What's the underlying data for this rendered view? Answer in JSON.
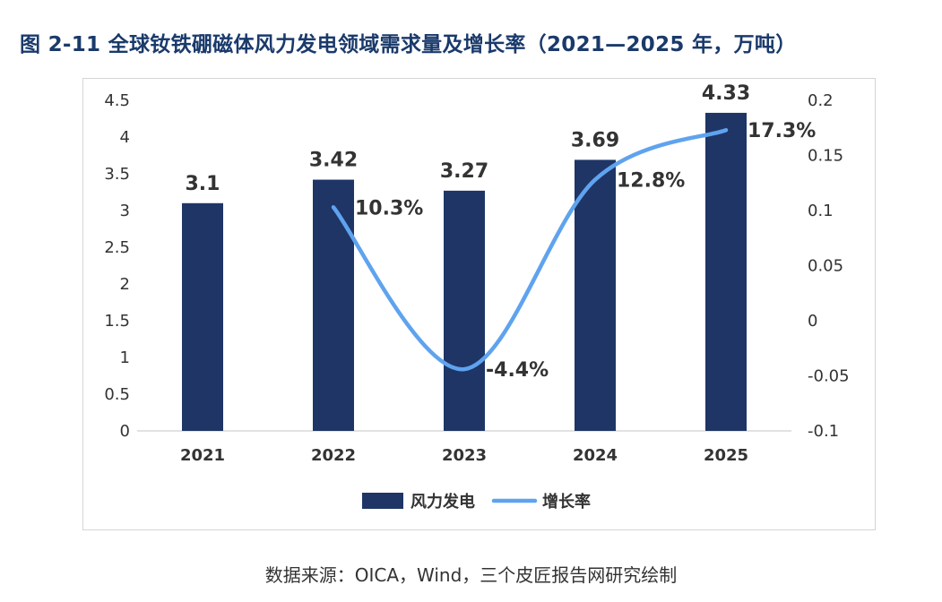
{
  "title": "图 2-11 全球钕铁硼磁体风力发电领域需求量及增长率（2021—2025 年，万吨）",
  "source": "数据来源：OICA，Wind，三个皮匠报告网研究绘制",
  "chart_data": {
    "type": "bar",
    "categories": [
      "2021",
      "2022",
      "2023",
      "2024",
      "2025"
    ],
    "series": [
      {
        "name": "风力发电",
        "type": "bar",
        "axis": "left",
        "color": "#1e3566",
        "values": [
          3.1,
          3.42,
          3.27,
          3.69,
          4.33
        ],
        "labels": [
          "3.1",
          "3.42",
          "3.27",
          "3.69",
          "4.33"
        ]
      },
      {
        "name": "增长率",
        "type": "line",
        "axis": "right",
        "color": "#5fa3ee",
        "values": [
          null,
          0.103,
          -0.044,
          0.128,
          0.173
        ],
        "labels": [
          "",
          "10.3%",
          "-4.4%",
          "12.8%",
          "17.3%"
        ]
      }
    ],
    "y_left": {
      "lim": [
        0,
        4.5
      ],
      "ticks": [
        0,
        0.5,
        1,
        1.5,
        2,
        2.5,
        3,
        3.5,
        4,
        4.5
      ],
      "tick_labels": [
        "0",
        "0.5",
        "1",
        "1.5",
        "2",
        "2.5",
        "3",
        "3.5",
        "4",
        "4.5"
      ]
    },
    "y_right": {
      "lim": [
        -0.1,
        0.2
      ],
      "ticks": [
        -0.1,
        -0.05,
        0,
        0.05,
        0.1,
        0.15,
        0.2
      ],
      "tick_labels": [
        "-0.1",
        "-0.05",
        "0",
        "0.05",
        "0.1",
        "0.15",
        "0.2"
      ]
    },
    "grid": false,
    "legend_position": "bottom"
  }
}
